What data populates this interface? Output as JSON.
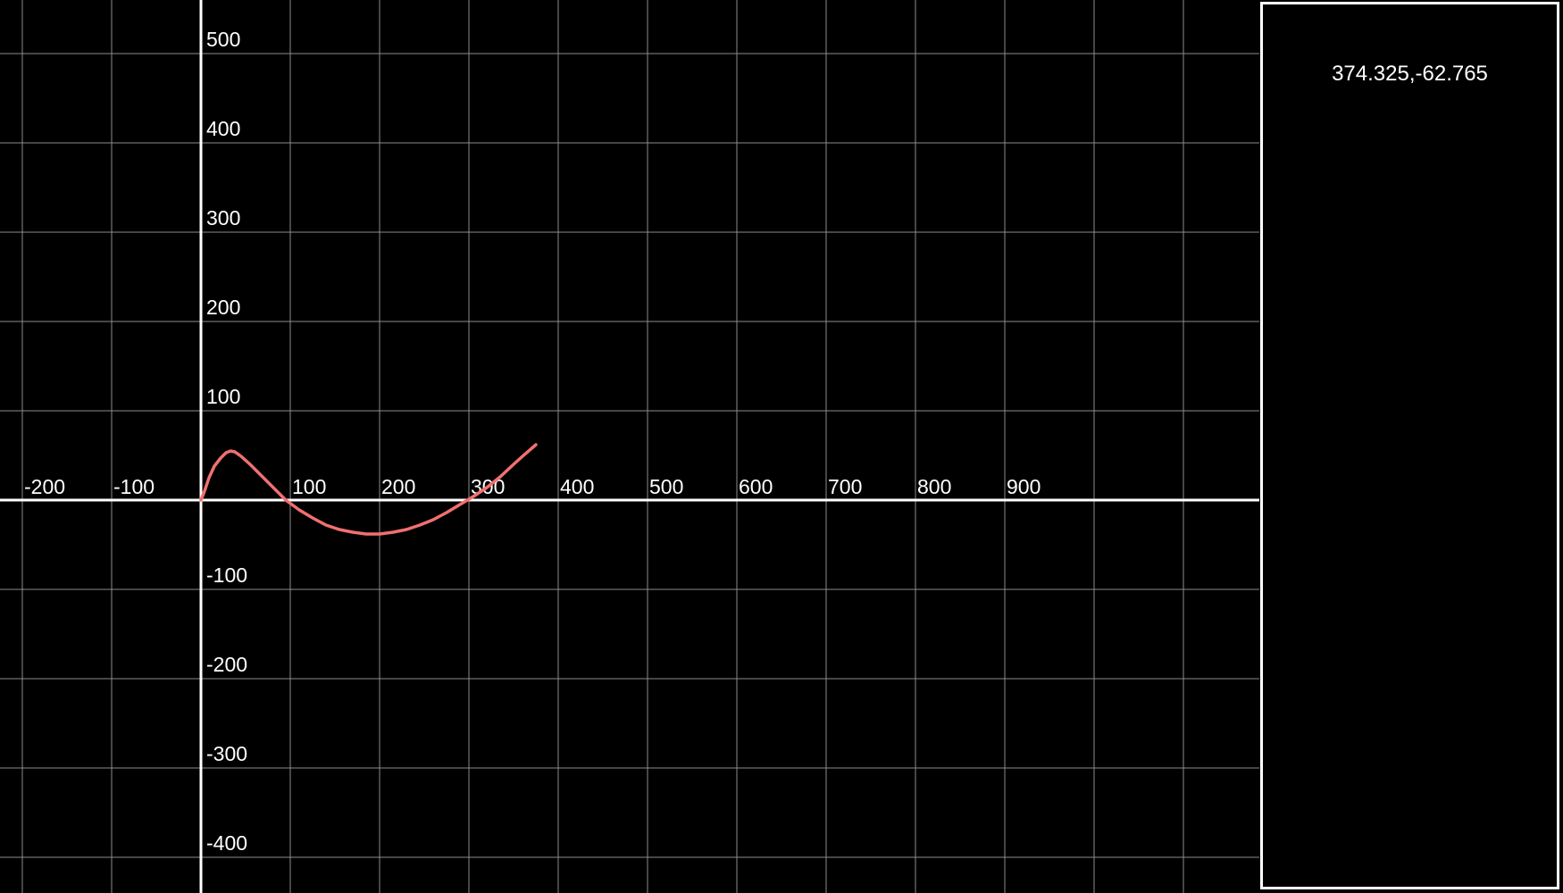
{
  "colors": {
    "background": "#000000",
    "grid": "#8c8c8c",
    "axis": "#ffffff",
    "curve": "#f07070",
    "text": "#ffffff"
  },
  "side_panel": {
    "coordinate_readout": "374.325,-62.765"
  },
  "chart_data": {
    "type": "line",
    "title": "",
    "xlabel": "",
    "ylabel": "",
    "xlim": [
      -225,
      1180
    ],
    "ylim": [
      -440,
      560
    ],
    "grid": true,
    "x_ticks": [
      -200,
      -100,
      100,
      200,
      300,
      400,
      500,
      600,
      700,
      800,
      900
    ],
    "y_ticks": [
      500,
      400,
      300,
      200,
      100,
      -100,
      -200,
      -300,
      -400
    ],
    "x_tick_labels": [
      "-200",
      "-100",
      "100",
      "200",
      "300",
      "400",
      "500",
      "600",
      "700",
      "800",
      "900"
    ],
    "y_tick_labels": [
      "500",
      "400",
      "300",
      "200",
      "100",
      "-100",
      "-200",
      "-300",
      "-400"
    ],
    "series": [
      {
        "points": [
          [
            0,
            0
          ],
          [
            4,
            10
          ],
          [
            9,
            25
          ],
          [
            15,
            38
          ],
          [
            22,
            47
          ],
          [
            28,
            53
          ],
          [
            33,
            55
          ],
          [
            38,
            54
          ],
          [
            45,
            49
          ],
          [
            55,
            40
          ],
          [
            65,
            30
          ],
          [
            75,
            20
          ],
          [
            85,
            10
          ],
          [
            95,
            0
          ],
          [
            110,
            -11
          ],
          [
            125,
            -20
          ],
          [
            140,
            -28
          ],
          [
            155,
            -33
          ],
          [
            170,
            -36
          ],
          [
            185,
            -38
          ],
          [
            200,
            -38
          ],
          [
            215,
            -36
          ],
          [
            230,
            -33
          ],
          [
            245,
            -28
          ],
          [
            260,
            -22
          ],
          [
            275,
            -14
          ],
          [
            290,
            -5
          ],
          [
            305,
            4
          ],
          [
            320,
            14
          ],
          [
            335,
            26
          ],
          [
            350,
            40
          ],
          [
            360,
            49
          ],
          [
            375,
            62
          ]
        ]
      }
    ]
  }
}
